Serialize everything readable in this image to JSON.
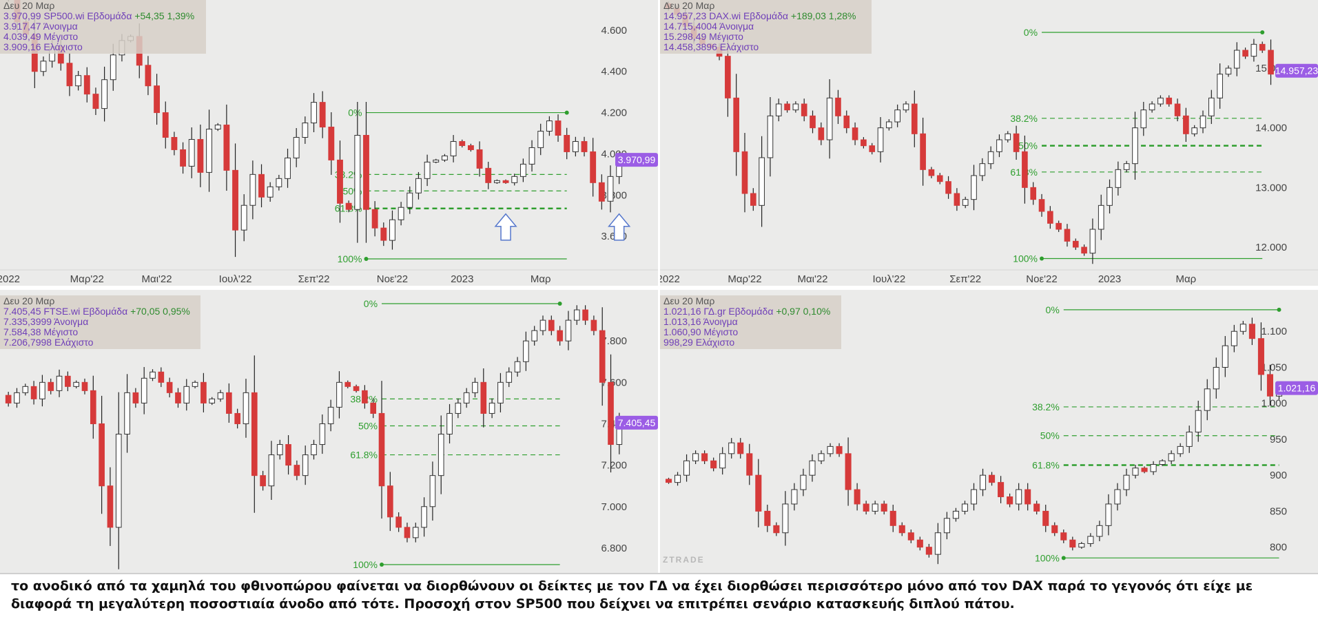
{
  "chart_data": [
    {
      "id": "sp500",
      "type": "candlestick",
      "info": {
        "date": "Δευ 20 Μαρ",
        "line1_value": "3.970,99",
        "line1_name": "SP500.wi Εβδομάδα",
        "line1_change": "+54,35 1,39%",
        "open": "3.917,47 Άνοιγμα",
        "high": "4.039,49 Μέγιστο",
        "low": "3.909,16 Ελάχιστο"
      },
      "last_value_label": "3.970,99",
      "last_value": 3970.99,
      "ylim": [
        3460,
        4720
      ],
      "y_ticks": [
        {
          "v": 4600,
          "t": "4.600"
        },
        {
          "v": 4400,
          "t": "4.400"
        },
        {
          "v": 4200,
          "t": "4.200"
        },
        {
          "v": 4000,
          "t": "4.000"
        },
        {
          "v": 3800,
          "t": "3.800"
        },
        {
          "v": 3600,
          "t": "3.600"
        }
      ],
      "x_ticks": [
        {
          "i": 0,
          "t": "2022"
        },
        {
          "i": 9,
          "t": "Μαρ'22"
        },
        {
          "i": 17,
          "t": "Μαι'22"
        },
        {
          "i": 26,
          "t": "Ιουλ'22"
        },
        {
          "i": 35,
          "t": "Σεπ'22"
        },
        {
          "i": 44,
          "t": "Νοε'22"
        },
        {
          "i": 52,
          "t": "2023"
        },
        {
          "i": 61,
          "t": "Μαρ"
        }
      ],
      "candles_close": [
        4750,
        4640,
        4580,
        4400,
        4450,
        4520,
        4440,
        4330,
        4380,
        4290,
        4220,
        4360,
        4480,
        4550,
        4570,
        4430,
        4330,
        4200,
        4080,
        4020,
        3940,
        4070,
        3910,
        4120,
        4140,
        3920,
        3630,
        3750,
        3900,
        3790,
        3840,
        3880,
        3980,
        4080,
        4150,
        4250,
        4130,
        3970,
        3760,
        3730,
        4090,
        3730,
        3640,
        3580,
        3680,
        3740,
        3810,
        3880,
        3960,
        3970,
        3990,
        4060,
        4040,
        4020,
        3930,
        3860,
        3870,
        3860,
        3890,
        3950,
        4030,
        4110,
        4160,
        4090,
        4010,
        4060,
        4010,
        3860,
        3770,
        3890,
        3970.99
      ],
      "fib_levels": [
        {
          "label": "0%",
          "value": 4200,
          "style": "solid"
        },
        {
          "label": "38.2%",
          "value": 3900,
          "style": "dashed"
        },
        {
          "label": "50%",
          "value": 3820,
          "style": "dashed"
        },
        {
          "label": "61.8%",
          "value": 3735,
          "style": "dashed-bold"
        },
        {
          "label": "100%",
          "value": 3490,
          "style": "solid"
        }
      ],
      "fib_range": [
        41,
        64
      ],
      "arrows": [
        57,
        70
      ]
    },
    {
      "id": "dax",
      "type": "candlestick",
      "info": {
        "date": "Δευ 20 Μαρ",
        "line1_value": "14.957,23",
        "line1_name": "DAX.wi Εβδομάδα",
        "line1_change": "+189,03 1,28%",
        "open": "14.715,4004 Άνοιγμα",
        "high": "15.298,49 Μέγιστο",
        "low": "14.458,3896 Ελάχιστο"
      },
      "last_value_label": "14.957,23",
      "last_value": 14957.23,
      "ylim": [
        11700,
        16050
      ],
      "y_ticks": [
        {
          "v": 15000,
          "t": "15.000"
        },
        {
          "v": 14000,
          "t": "14.000"
        },
        {
          "v": 13000,
          "t": "13.000"
        },
        {
          "v": 12000,
          "t": "12.000"
        }
      ],
      "x_ticks": [
        {
          "i": 0,
          "t": "2022"
        },
        {
          "i": 9,
          "t": "Μαρ'22"
        },
        {
          "i": 17,
          "t": "Μαι'22"
        },
        {
          "i": 26,
          "t": "Ιουλ'22"
        },
        {
          "i": 35,
          "t": "Σεπ'22"
        },
        {
          "i": 44,
          "t": "Νοε'22"
        },
        {
          "i": 52,
          "t": "2023"
        },
        {
          "i": 61,
          "t": "Μαρ"
        }
      ],
      "candles_close": [
        16000,
        15900,
        15700,
        15500,
        15400,
        15350,
        15200,
        14500,
        13600,
        12900,
        12700,
        13500,
        14200,
        14400,
        14300,
        14400,
        14200,
        14000,
        13800,
        14500,
        14200,
        14000,
        13800,
        13700,
        13600,
        14000,
        14100,
        14300,
        14400,
        13900,
        13300,
        13200,
        13100,
        12900,
        12700,
        12800,
        13200,
        13400,
        13600,
        13800,
        13900,
        13600,
        13000,
        12800,
        12600,
        12400,
        12300,
        12100,
        12000,
        11900,
        12300,
        12700,
        13000,
        13300,
        13400,
        14000,
        14300,
        14400,
        14500,
        14400,
        14200,
        13900,
        14000,
        14200,
        14500,
        14900,
        15000,
        15300,
        15200,
        15400,
        15300,
        14900,
        14957.23
      ],
      "fib_levels": [
        {
          "label": "0%",
          "value": 15600,
          "style": "solid"
        },
        {
          "label": "38.2%",
          "value": 14160,
          "style": "dashed"
        },
        {
          "label": "50%",
          "value": 13700,
          "style": "dashed-bold"
        },
        {
          "label": "61.8%",
          "value": 13260,
          "style": "dashed"
        },
        {
          "label": "100%",
          "value": 11810,
          "style": "solid"
        }
      ],
      "fib_range": [
        44,
        70
      ]
    },
    {
      "id": "ftse",
      "type": "candlestick",
      "info": {
        "date": "Δευ 20 Μαρ",
        "line1_value": "7.405,45",
        "line1_name": "FTSE.wi Εβδομάδα",
        "line1_change": "+70,05 0,95%",
        "open": "7.335,3999 Άνοιγμα",
        "high": "7.584,38 Μέγιστο",
        "low": "7.206,7998 Ελάχιστο"
      },
      "last_value_label": "7.405,45",
      "last_value": 7405.45,
      "ylim": [
        6700,
        8020
      ],
      "y_ticks": [
        {
          "v": 7800,
          "t": "7.800"
        },
        {
          "v": 7600,
          "t": "7.600"
        },
        {
          "v": 7400,
          "t": "7.400"
        },
        {
          "v": 7200,
          "t": "7.200"
        },
        {
          "v": 7000,
          "t": "7.000"
        },
        {
          "v": 6800,
          "t": "6.800"
        }
      ],
      "x_ticks": [],
      "candles_close": [
        7500,
        7550,
        7580,
        7520,
        7600,
        7560,
        7630,
        7580,
        7600,
        7560,
        7400,
        7100,
        6900,
        7350,
        7550,
        7500,
        7620,
        7650,
        7600,
        7550,
        7500,
        7580,
        7600,
        7500,
        7520,
        7550,
        7450,
        7400,
        7550,
        7150,
        7100,
        7250,
        7300,
        7200,
        7150,
        7250,
        7300,
        7400,
        7480,
        7600,
        7580,
        7560,
        7500,
        7450,
        7100,
        6950,
        6900,
        6850,
        6900,
        7000,
        7150,
        7350,
        7450,
        7500,
        7550,
        7600,
        7450,
        7500,
        7600,
        7650,
        7700,
        7800,
        7850,
        7900,
        7850,
        7800,
        7900,
        7950,
        7900,
        7850,
        7600,
        7300,
        7405.45
      ],
      "fib_levels": [
        {
          "label": "0%",
          "value": 7980,
          "style": "solid"
        },
        {
          "label": "38.2%",
          "value": 7520,
          "style": "dashed"
        },
        {
          "label": "50%",
          "value": 7390,
          "style": "dashed"
        },
        {
          "label": "61.8%",
          "value": 7250,
          "style": "dashed"
        },
        {
          "label": "100%",
          "value": 6720,
          "style": "solid"
        }
      ],
      "fib_range": [
        44,
        65
      ]
    },
    {
      "id": "gd",
      "type": "candlestick",
      "info": {
        "date": "Δευ 20 Μαρ",
        "line1_value": "1.021,16",
        "line1_name": "ΓΔ.gr Εβδομάδα",
        "line1_change": "+0,97 0,10%",
        "open": "1.013,16 Άνοιγμα",
        "high": "1.060,90 Μέγιστο",
        "low": "998,29 Ελάχιστο"
      },
      "last_value_label": "1.021,16",
      "last_value": 1021.16,
      "ylim": [
        770,
        1150
      ],
      "y_ticks": [
        {
          "v": 1100,
          "t": "1.100"
        },
        {
          "v": 1050,
          "t": "1.050"
        },
        {
          "v": 1000,
          "t": "1.000"
        },
        {
          "v": 950,
          "t": "950"
        },
        {
          "v": 900,
          "t": "900"
        },
        {
          "v": 850,
          "t": "850"
        },
        {
          "v": 800,
          "t": "800"
        }
      ],
      "x_ticks": [],
      "candles_close": [
        890,
        900,
        920,
        930,
        920,
        910,
        930,
        945,
        930,
        900,
        850,
        830,
        820,
        860,
        880,
        900,
        920,
        930,
        940,
        930,
        880,
        860,
        850,
        860,
        850,
        830,
        820,
        810,
        800,
        790,
        820,
        840,
        850,
        860,
        880,
        900,
        890,
        870,
        860,
        880,
        860,
        850,
        830,
        820,
        810,
        800,
        805,
        815,
        830,
        860,
        880,
        900,
        910,
        905,
        915,
        920,
        930,
        940,
        960,
        990,
        1020,
        1050,
        1080,
        1100,
        1110,
        1090,
        1040,
        1010,
        1021.16
      ],
      "fib_levels": [
        {
          "label": "0%",
          "value": 1130,
          "style": "solid"
        },
        {
          "label": "38.2%",
          "value": 995,
          "style": "dashed"
        },
        {
          "label": "50%",
          "value": 955,
          "style": "dashed"
        },
        {
          "label": "61.8%",
          "value": 914,
          "style": "dashed-bold"
        },
        {
          "label": "100%",
          "value": 785,
          "style": "solid"
        }
      ],
      "fib_range": [
        44,
        68
      ]
    }
  ],
  "watermark": "ZTRADE",
  "caption": "το ανοδικό από τα χαμηλά του φθινοπώρου φαίνεται να διορθώνουν οι δείκτες με τον ΓΔ να έχει διορθώσει περισσότερο μόνο από τον DAX παρά το γεγονός ότι είχε με διαφορά τη μεγαλύτερη ποσοστιαία άνοδο από τότε. Προσοχή στον  SP500 που δείχνει να επιτρέπει σενάριο κατασκευής διπλού πάτου.",
  "colors": {
    "bull": "#ffffff",
    "bear": "#d63a3a",
    "fib": "#2e9e2e",
    "label_bg": "#9b5de5",
    "arrow": "#5577cc"
  }
}
